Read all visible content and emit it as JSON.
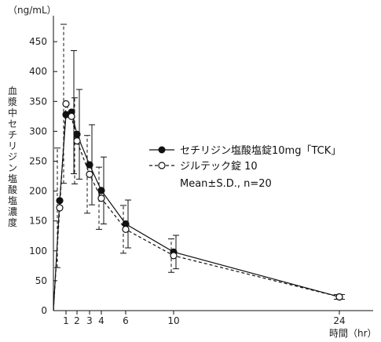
{
  "chart_data": {
    "type": "line",
    "ylabel": "血漿中セチリジン塩酸塩濃度",
    "yunit": "（ng/mL）",
    "xlabel": "時間（hr）",
    "ylim": [
      0,
      500
    ],
    "yticks": [
      0,
      50,
      100,
      150,
      200,
      250,
      300,
      350,
      400,
      450
    ],
    "xticks": [
      1,
      2,
      3,
      4,
      6,
      10,
      24
    ],
    "stats_note": "Mean±S.D., n=20",
    "series": [
      {
        "name": "セチリジン塩酸塩錠10mg「TCK」",
        "marker": "filled-circle",
        "line": "solid",
        "x": [
          0,
          0.5,
          1,
          1.5,
          2,
          3,
          4,
          6,
          10,
          24
        ],
        "y": [
          0,
          184,
          328,
          332,
          295,
          244,
          201,
          145,
          98,
          23
        ],
        "sd": [
          0,
          0,
          0,
          103,
          75,
          67,
          56,
          40,
          28,
          4
        ]
      },
      {
        "name": "ジルテック錠 10",
        "marker": "open-circle",
        "line": "dashed",
        "x": [
          0,
          0.5,
          1,
          1.5,
          2,
          3,
          4,
          6,
          10,
          24
        ],
        "y": [
          0,
          172,
          346,
          325,
          284,
          228,
          188,
          136,
          92,
          23
        ],
        "sd": [
          0,
          100,
          133,
          0,
          72,
          65,
          52,
          40,
          28,
          4
        ]
      }
    ]
  }
}
